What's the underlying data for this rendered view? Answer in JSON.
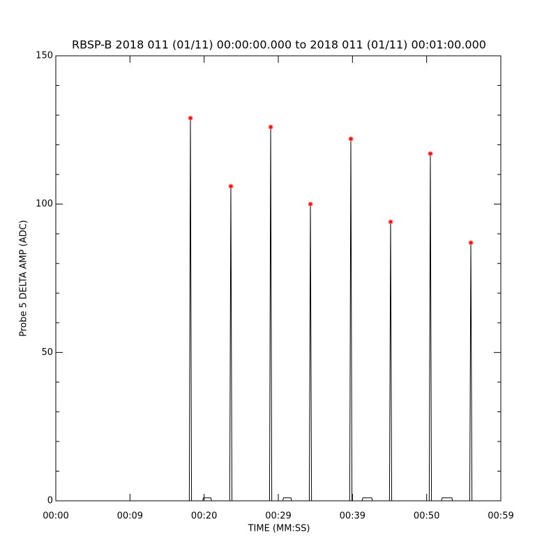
{
  "chart_data": {
    "type": "line",
    "title": "RBSP-B 2018 011 (01/11) 00:00:00.000 to 2018 011 (01/11) 00:01:00.000",
    "x_label": "TIME (MM:SS)",
    "y_label": "Probe 5 DELTA AMP (ADC)",
    "xlim": [
      0,
      60
    ],
    "xticks": [
      {
        "value": 0,
        "label": "00:00"
      },
      {
        "value": 10,
        "label": "00:09"
      },
      {
        "value": 20,
        "label": "00:20"
      },
      {
        "value": 30,
        "label": "00:29"
      },
      {
        "value": 40,
        "label": "00:39"
      },
      {
        "value": 50,
        "label": "00:50"
      },
      {
        "value": 60,
        "label": "00:59"
      }
    ],
    "ylim": [
      0,
      150
    ],
    "yticks": [
      0,
      50,
      100,
      150
    ],
    "yminor": [
      10,
      20,
      30,
      40,
      60,
      70,
      80,
      90,
      110,
      120,
      130,
      140
    ],
    "series": [
      {
        "color": "#000000",
        "marker": "none",
        "x": [
          0,
          18.0,
          18.15,
          18.3,
          19.8,
          19.9,
          20.9,
          21.0,
          23.45,
          23.6,
          23.75,
          28.82,
          28.97,
          29.12,
          30.6,
          30.7,
          31.7,
          31.8,
          34.18,
          34.33,
          34.48,
          39.63,
          39.78,
          39.93,
          41.3,
          41.4,
          42.6,
          42.7,
          44.99,
          45.14,
          45.29,
          50.35,
          50.5,
          50.65,
          52.0,
          52.1,
          53.4,
          53.5,
          55.81,
          55.96,
          56.11,
          60
        ],
        "values": [
          0,
          0,
          129,
          0,
          0,
          1,
          1,
          0,
          0,
          106,
          0,
          0,
          126,
          0,
          0,
          1,
          1,
          0,
          0,
          100,
          0,
          0,
          122,
          0,
          0,
          1,
          1,
          0,
          0,
          94,
          0,
          0,
          117,
          0,
          0,
          1,
          1,
          0,
          0,
          87,
          0,
          0
        ]
      },
      {
        "color": "#ff0000",
        "marker": "asterisk",
        "x": [
          18.15,
          23.6,
          28.97,
          34.33,
          39.78,
          45.14,
          50.5,
          55.96
        ],
        "values": [
          129,
          106,
          126,
          100,
          122,
          94,
          117,
          87
        ]
      }
    ]
  }
}
